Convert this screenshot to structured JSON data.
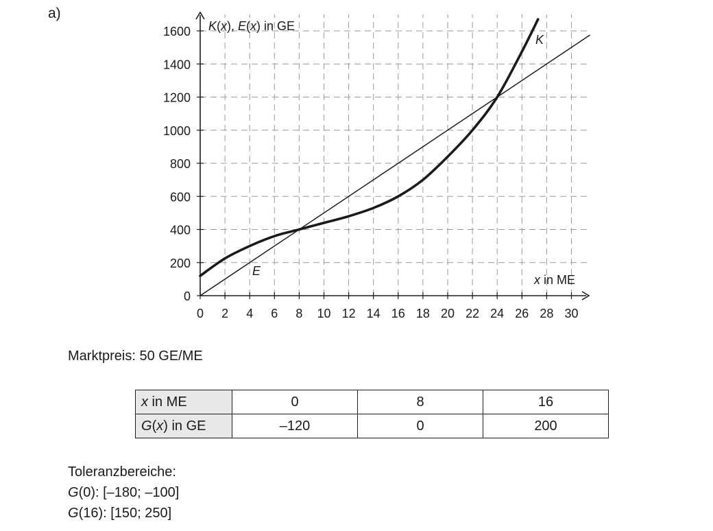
{
  "part_label": "a)",
  "chart_data": {
    "type": "line",
    "y_axis_label": {
      "k": "K",
      "x1": "x",
      "sep": "), ",
      "e": "E",
      "x2": "x",
      "suffix": ") in GE"
    },
    "x_axis_label": {
      "var": "x",
      "suffix": " in ME"
    },
    "xlim": [
      0,
      31.5
    ],
    "ylim": [
      0,
      1700
    ],
    "x_ticks": [
      0,
      2,
      4,
      6,
      8,
      10,
      12,
      14,
      16,
      18,
      20,
      22,
      24,
      26,
      28,
      30
    ],
    "y_ticks": [
      0,
      200,
      400,
      600,
      800,
      1000,
      1200,
      1400,
      1600
    ],
    "x_tick_labels": [
      "0",
      "2",
      "4",
      "6",
      "8",
      "10",
      "12",
      "14",
      "16",
      "18",
      "20",
      "22",
      "24",
      "26",
      "28",
      "30"
    ],
    "y_tick_labels": [
      "0",
      "200",
      "400",
      "600",
      "800",
      "1000",
      "1200",
      "1400",
      "1600"
    ],
    "grid": true,
    "series": [
      {
        "name": "K",
        "color": "#1a1a1a",
        "x": [
          0,
          2,
          4,
          6,
          8,
          10,
          12,
          14,
          16,
          18,
          20,
          22,
          24,
          26,
          27.3
        ],
        "y": [
          120,
          225,
          300,
          360,
          400,
          440,
          480,
          530,
          600,
          700,
          840,
          1000,
          1200,
          1475,
          1670
        ]
      },
      {
        "name": "E",
        "color": "#1a1a1a",
        "x": [
          0,
          31.5
        ],
        "y": [
          0,
          1575
        ]
      }
    ]
  },
  "market_price": "Marktpreis: 50 GE/ME",
  "table": {
    "row1": {
      "var": "x",
      "unit": " in ME",
      "values": [
        "0",
        "8",
        "16"
      ]
    },
    "row2": {
      "func": "G",
      "var": "x",
      "unit": ") in GE",
      "values": [
        "–120",
        "0",
        "200"
      ]
    }
  },
  "tolerances": {
    "title": "Toleranzbereiche:",
    "items": [
      {
        "func": "G",
        "text": "(0): [–180; –100]"
      },
      {
        "func": "G",
        "text": "(16): [150; 250]"
      }
    ]
  }
}
